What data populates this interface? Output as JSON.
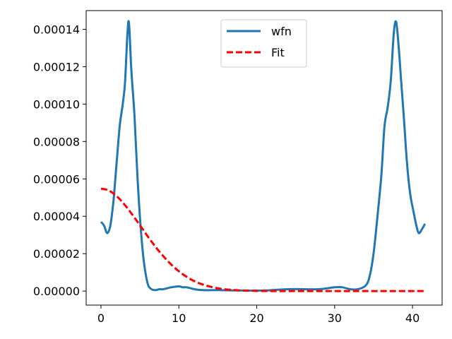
{
  "chart_data": {
    "type": "line",
    "title": "",
    "xlabel": "",
    "ylabel": "",
    "xlim": [
      -1.9,
      43.8
    ],
    "ylim": [
      -7.5e-06,
      0.00015
    ],
    "grid": false,
    "legend_position": "top-center",
    "x_ticks": [
      {
        "value": 0,
        "label": "0"
      },
      {
        "value": 10,
        "label": "10"
      },
      {
        "value": 20,
        "label": "20"
      },
      {
        "value": 30,
        "label": "30"
      },
      {
        "value": 40,
        "label": "40"
      }
    ],
    "y_ticks": [
      {
        "value": 0.0,
        "label": "0.00000"
      },
      {
        "value": 2e-05,
        "label": "0.00002"
      },
      {
        "value": 4e-05,
        "label": "0.00004"
      },
      {
        "value": 6e-05,
        "label": "0.00006"
      },
      {
        "value": 8e-05,
        "label": "0.00008"
      },
      {
        "value": 0.0001,
        "label": "0.00010"
      },
      {
        "value": 0.00012,
        "label": "0.00012"
      },
      {
        "value": 0.00014,
        "label": "0.00014"
      }
    ],
    "series": [
      {
        "name": "wfn",
        "color": "#1f77b4",
        "style": "solid",
        "x": [
          0,
          0.4,
          0.8,
          1.2,
          1.6,
          2.0,
          2.4,
          2.8,
          3.1,
          3.4,
          3.6,
          3.9,
          4.3,
          4.7,
          5.1,
          5.5,
          6.0,
          6.5,
          7.0,
          7.5,
          8.0,
          9.0,
          10.0,
          10.5,
          11.0,
          12.0,
          13.0,
          15.0,
          18.0,
          21.0,
          24.0,
          26.0,
          28.0,
          30.0,
          31.0,
          32.0,
          33.0,
          34.0,
          34.5,
          35.0,
          35.5,
          36.0,
          36.4,
          36.8,
          37.2,
          37.6,
          37.9,
          38.2,
          38.5,
          38.9,
          39.3,
          39.7,
          40.1,
          40.5,
          40.8,
          41.2,
          41.6
        ],
        "y": [
          3.7e-05,
          3.5e-05,
          3.1e-05,
          3.5e-05,
          4.8e-05,
          6.8e-05,
          8.8e-05,
          0.0001,
          0.000112,
          0.000138,
          0.000143,
          0.000118,
          9.4e-05,
          6e-05,
          3.4e-05,
          1.6e-05,
          4e-06,
          1e-06,
          5e-07,
          1e-06,
          1e-06,
          2e-06,
          2.5e-06,
          2e-06,
          2e-06,
          1e-06,
          5e-07,
          5e-07,
          3e-07,
          3e-07,
          1e-06,
          1e-06,
          1e-06,
          2e-06,
          2e-06,
          1e-06,
          1e-06,
          3e-06,
          8e-06,
          2e-05,
          4e-05,
          6.2e-05,
          8.8e-05,
          9.8e-05,
          0.000112,
          0.000138,
          0.000144,
          0.000132,
          0.000115,
          9.2e-05,
          6.8e-05,
          5.2e-05,
          4.3e-05,
          3.5e-05,
          3.1e-05,
          3.3e-05,
          3.6e-05
        ]
      },
      {
        "name": "Fit",
        "color": "#ff0000",
        "style": "dashed",
        "x": [
          0,
          1,
          2,
          3,
          4,
          5,
          6,
          7,
          8,
          9,
          10,
          11,
          12,
          13,
          14,
          15,
          16,
          17,
          18,
          19,
          20,
          22,
          25,
          30,
          35,
          41.6
        ],
        "y": [
          5.48e-05,
          5.38e-05,
          5.08e-05,
          4.64e-05,
          4.1e-05,
          3.52e-05,
          2.93e-05,
          2.37e-05,
          1.87e-05,
          1.43e-05,
          1.06e-05,
          7.6e-06,
          5.3e-06,
          3.6e-06,
          2.4e-06,
          1.5e-06,
          9e-07,
          6e-07,
          3e-07,
          2e-07,
          1e-07,
          3e-08,
          0.0,
          0.0,
          0.0,
          0.0
        ]
      }
    ]
  }
}
